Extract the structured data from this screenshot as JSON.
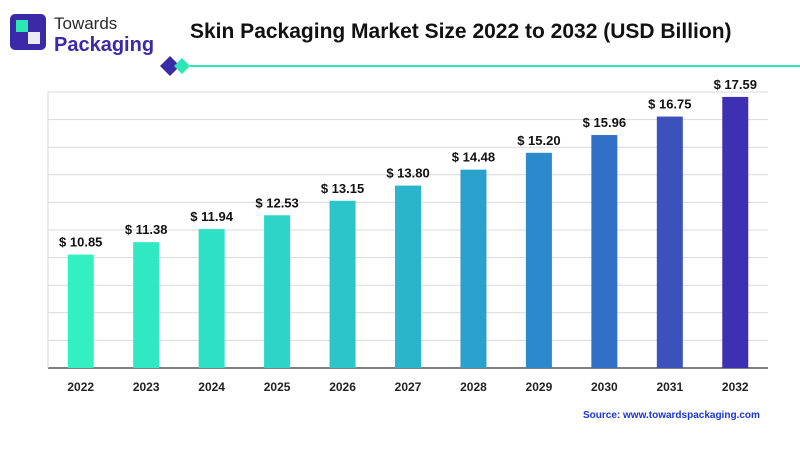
{
  "brand": {
    "name_line1": "Towards",
    "name_line2": "Packaging",
    "accent_color": "#3b2aa8",
    "mint_color": "#2ee6b4",
    "icon": "towards-packaging-logo-icon"
  },
  "source_text": "Source: www.towardspackaging.com",
  "chart_data": {
    "type": "bar",
    "title": "Skin Packaging Market Size 2022 to 2032 (USD Billion)",
    "xlabel": "",
    "ylabel": "",
    "categories": [
      "2022",
      "2023",
      "2024",
      "2025",
      "2026",
      "2027",
      "2028",
      "2029",
      "2030",
      "2031",
      "2032"
    ],
    "values": [
      10.85,
      11.38,
      11.94,
      12.53,
      13.15,
      13.8,
      14.48,
      15.2,
      15.96,
      16.75,
      17.59
    ],
    "value_labels": [
      "$ 10.85",
      "$ 11.38",
      "$ 11.94",
      "$ 12.53",
      "$ 13.15",
      "$ 13.80",
      "$ 14.48",
      "$ 15.20",
      "$ 15.96",
      "$ 16.75",
      "$ 17.59"
    ],
    "ylim": [
      6,
      17.8
    ],
    "grid": true,
    "bar_colors": [
      "#33f0c3",
      "#30e8c4",
      "#2ee0c6",
      "#2dd4c8",
      "#2cc6ca",
      "#2bb5cc",
      "#2aa1cd",
      "#2b8acb",
      "#3170c6",
      "#3b52bd",
      "#3f2fb2"
    ]
  }
}
